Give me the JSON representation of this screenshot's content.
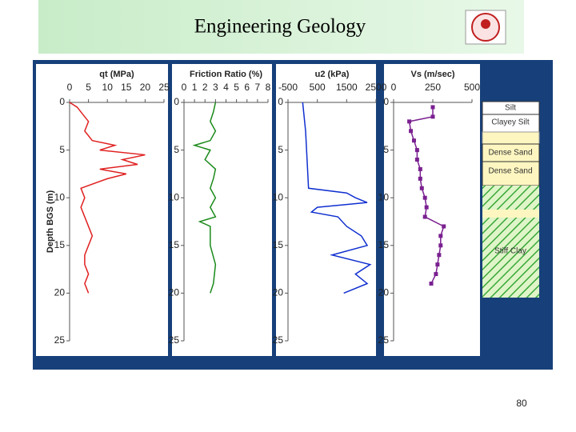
{
  "header": {
    "title": "Engineering Geology"
  },
  "page_number": "80",
  "soil_column": {
    "layers": [
      "Silt",
      "Clayey Silt",
      "Dense Sand",
      "Dense Sand",
      "Stiff Clay"
    ]
  },
  "chart_data": [
    {
      "type": "line",
      "title": "qt (MPa)",
      "y_label": "Depth BGS (m)",
      "y_inverted": true,
      "xlim": [
        0,
        25
      ],
      "xticks": [
        0,
        5,
        10,
        15,
        20,
        25
      ],
      "ylim": [
        0,
        25
      ],
      "yticks": [
        0,
        5,
        10,
        15,
        20,
        25
      ],
      "y": [
        0,
        0.5,
        1,
        2,
        3,
        4,
        4.5,
        5,
        5.5,
        6,
        6.5,
        7,
        7.5,
        8,
        9,
        10,
        11,
        12,
        13,
        14,
        15,
        16,
        17,
        18,
        19,
        20
      ],
      "series": [
        {
          "color": "#e02020",
          "values": [
            0,
            2,
            3,
            5,
            4,
            6,
            12,
            8,
            20,
            14,
            18,
            8,
            15,
            10,
            3,
            4,
            3,
            4,
            5,
            6,
            5,
            4,
            4,
            5,
            4,
            5
          ]
        }
      ]
    },
    {
      "type": "line",
      "title": "Friction Ratio (%)",
      "y_inverted": true,
      "xlim": [
        0,
        8
      ],
      "xticks": [
        0,
        1,
        2,
        3,
        4,
        5,
        6,
        7,
        8
      ],
      "ylim": [
        0,
        25
      ],
      "yticks": [
        0,
        5,
        10,
        15,
        20,
        25
      ],
      "y": [
        0,
        1,
        2,
        3,
        4,
        4.5,
        5,
        6,
        7,
        8,
        9,
        10,
        11,
        12,
        12.5,
        13,
        15,
        17,
        19,
        20
      ],
      "series": [
        {
          "color": "#1a8a1a",
          "values": [
            3,
            2.8,
            2.5,
            3,
            2.5,
            1,
            2.5,
            2,
            3,
            2.8,
            2.5,
            3,
            2.5,
            3,
            1.5,
            2.5,
            2.5,
            3,
            2.8,
            2.5
          ]
        }
      ]
    },
    {
      "type": "line",
      "title": "u2 (kPa)",
      "y_inverted": true,
      "xlim": [
        -500,
        2500
      ],
      "xticks": [
        -500,
        500,
        1500,
        2500
      ],
      "ylim": [
        0,
        25
      ],
      "yticks": [
        0,
        5,
        10,
        15,
        20,
        25
      ],
      "y": [
        0,
        3,
        6,
        9,
        9.5,
        10,
        10.5,
        11,
        11.5,
        12,
        13,
        14,
        15,
        16,
        17,
        18,
        19,
        20
      ],
      "series": [
        {
          "color": "#1030d0",
          "values": [
            0,
            100,
            150,
            200,
            1500,
            1800,
            2200,
            500,
            300,
            1200,
            1500,
            2000,
            2200,
            1000,
            2300,
            1800,
            2200,
            1400
          ]
        }
      ]
    },
    {
      "type": "line",
      "title": "Vs (m/sec)",
      "y_inverted": true,
      "markers": true,
      "xlim": [
        0,
        500
      ],
      "xticks": [
        0,
        250,
        500
      ],
      "ylim": [
        0,
        25
      ],
      "yticks": [
        0,
        5,
        10,
        15,
        20,
        25
      ],
      "y": [
        0.5,
        1.5,
        2,
        3,
        4,
        5,
        6,
        7,
        8,
        9,
        10,
        11,
        12,
        13,
        14,
        15,
        16,
        17,
        18,
        19
      ],
      "series": [
        {
          "color": "#7a2090",
          "values": [
            250,
            250,
            100,
            110,
            130,
            150,
            150,
            170,
            170,
            180,
            200,
            210,
            200,
            320,
            300,
            300,
            290,
            280,
            270,
            240
          ]
        }
      ]
    }
  ]
}
